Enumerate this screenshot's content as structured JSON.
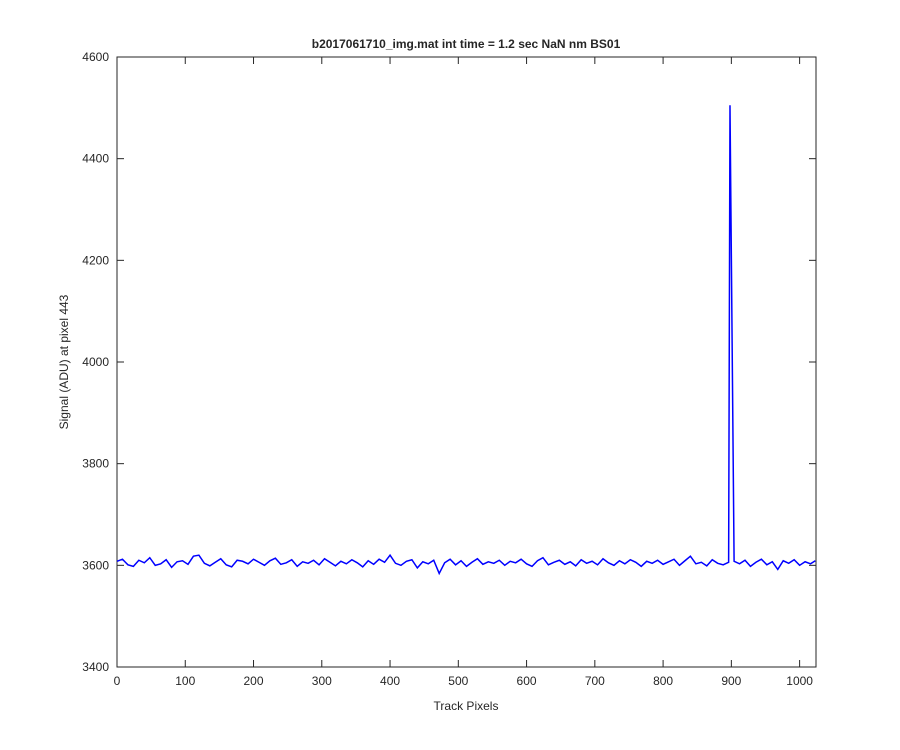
{
  "chart_data": {
    "type": "line",
    "title": "b2017061710_img.mat int time = 1.2 sec  NaN nm BS01",
    "x_label": "Track Pixels",
    "y_label": "Signal (ADU) at pixel 443",
    "xlim": [
      0,
      1024
    ],
    "ylim": [
      3400,
      4600
    ],
    "xticks": [
      0,
      100,
      200,
      300,
      400,
      500,
      600,
      700,
      800,
      900,
      1000
    ],
    "yticks": [
      3400,
      3600,
      3800,
      4000,
      4200,
      4400,
      4600
    ],
    "x": [
      0,
      8,
      16,
      24,
      32,
      40,
      48,
      56,
      64,
      72,
      80,
      88,
      96,
      104,
      112,
      120,
      128,
      136,
      144,
      152,
      160,
      168,
      176,
      184,
      192,
      200,
      208,
      216,
      224,
      232,
      240,
      248,
      256,
      264,
      272,
      280,
      288,
      296,
      304,
      312,
      320,
      328,
      336,
      344,
      352,
      360,
      368,
      376,
      384,
      392,
      400,
      408,
      416,
      424,
      432,
      440,
      448,
      456,
      464,
      472,
      480,
      488,
      496,
      504,
      512,
      520,
      528,
      536,
      544,
      552,
      560,
      568,
      576,
      584,
      592,
      600,
      608,
      616,
      624,
      632,
      640,
      648,
      656,
      664,
      672,
      680,
      688,
      696,
      704,
      712,
      720,
      728,
      736,
      744,
      752,
      760,
      768,
      776,
      784,
      792,
      800,
      808,
      816,
      824,
      832,
      840,
      848,
      856,
      864,
      872,
      880,
      888,
      896,
      898,
      904,
      912,
      920,
      928,
      936,
      944,
      952,
      960,
      968,
      976,
      984,
      992,
      1000,
      1008,
      1016,
      1023
    ],
    "series": [
      {
        "name": "signal",
        "color": "#0000ff",
        "values": [
          3608,
          3612,
          3601,
          3598,
          3610,
          3605,
          3615,
          3600,
          3603,
          3611,
          3596,
          3607,
          3609,
          3602,
          3618,
          3620,
          3604,
          3599,
          3606,
          3613,
          3601,
          3597,
          3610,
          3608,
          3603,
          3612,
          3606,
          3600,
          3609,
          3614,
          3602,
          3605,
          3611,
          3598,
          3607,
          3604,
          3610,
          3601,
          3613,
          3606,
          3599,
          3608,
          3603,
          3611,
          3605,
          3597,
          3609,
          3602,
          3612,
          3606,
          3620,
          3604,
          3600,
          3608,
          3611,
          3595,
          3607,
          3603,
          3610,
          3584,
          3605,
          3612,
          3601,
          3609,
          3598,
          3606,
          3613,
          3602,
          3607,
          3604,
          3610,
          3600,
          3608,
          3605,
          3612,
          3603,
          3598,
          3609,
          3615,
          3601,
          3606,
          3610,
          3602,
          3607,
          3599,
          3611,
          3604,
          3608,
          3601,
          3613,
          3605,
          3600,
          3609,
          3603,
          3611,
          3606,
          3598,
          3608,
          3604,
          3610,
          3602,
          3607,
          3612,
          3600,
          3609,
          3618,
          3603,
          3606,
          3599,
          3611,
          3604,
          3601,
          3606,
          4505,
          3608,
          3603,
          3610,
          3598,
          3606,
          3612,
          3601,
          3607,
          3592,
          3609,
          3604,
          3611,
          3600,
          3607,
          3603,
          3609
        ]
      }
    ]
  }
}
